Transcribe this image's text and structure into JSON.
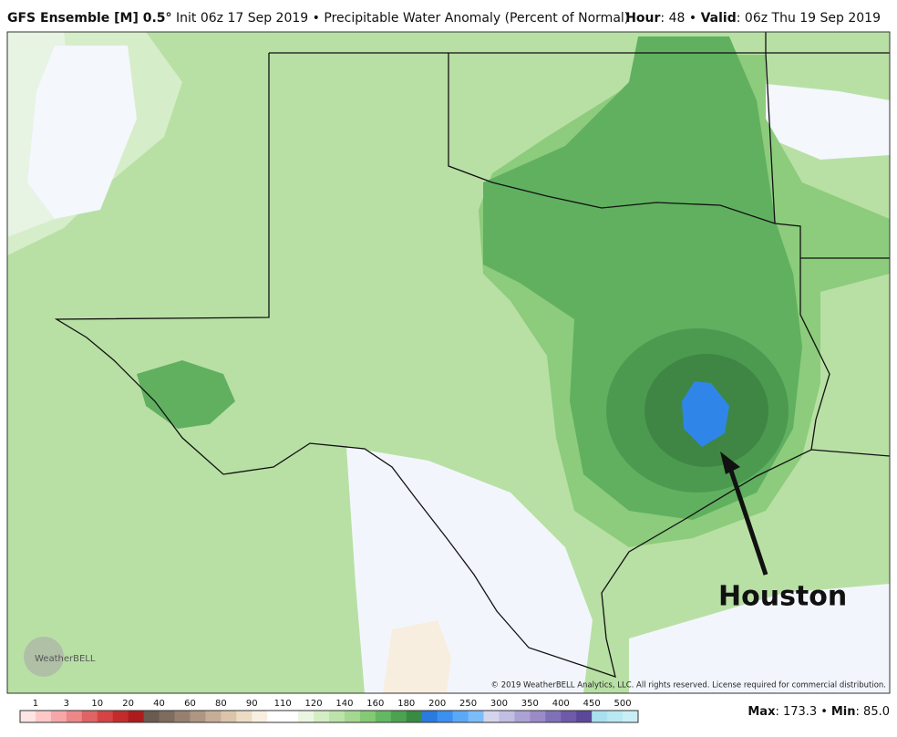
{
  "header": {
    "model": "GFS Ensemble [M] 0.5°",
    "init": "Init 06z 17 Sep 2019",
    "sep": "•",
    "product": "Precipitable Water Anomaly (Percent of Normal)",
    "hour_label": "Hour",
    "hour": "48",
    "valid_label": "Valid",
    "valid": "06z Thu 19 Sep 2019"
  },
  "map": {
    "annotation": "Houston",
    "copyright": "© 2019 WeatherBELL Analytics, LLC. All rights reserved. License required for commercial distribution.",
    "logo": "WeatherBELL"
  },
  "colorbar": {
    "labels": [
      1,
      3,
      10,
      20,
      40,
      60,
      80,
      90,
      110,
      120,
      140,
      160,
      180,
      200,
      250,
      300,
      350,
      400,
      450,
      500
    ],
    "colors": [
      "#ffe4e4",
      "#ffc8c8",
      "#f6a8a8",
      "#ec8888",
      "#e06464",
      "#d44444",
      "#c42c2c",
      "#ac1c1c",
      "#6a5a50",
      "#7e6c60",
      "#988070",
      "#ae9682",
      "#c6ae96",
      "#dcc4aa",
      "#ecdcc4",
      "#f8efe0",
      "#ffffff",
      "#ffffff",
      "#eaf6e2",
      "#d4eec4",
      "#bce4aa",
      "#a4d890",
      "#84ca74",
      "#64b864",
      "#4ca250",
      "#3a8a44",
      "#2a7ae0",
      "#3c90f0",
      "#5ca8f8",
      "#7cbcf8",
      "#d4d4ec",
      "#c0bee2",
      "#aca2d4",
      "#9a8ac8",
      "#8070b8",
      "#6e5aa8",
      "#5c4898",
      "#a8e0f0",
      "#b8e8f2",
      "#c8eef6"
    ]
  },
  "stats": {
    "max_label": "Max",
    "max": "173.3",
    "min_label": "Min",
    "min": "85.0"
  }
}
